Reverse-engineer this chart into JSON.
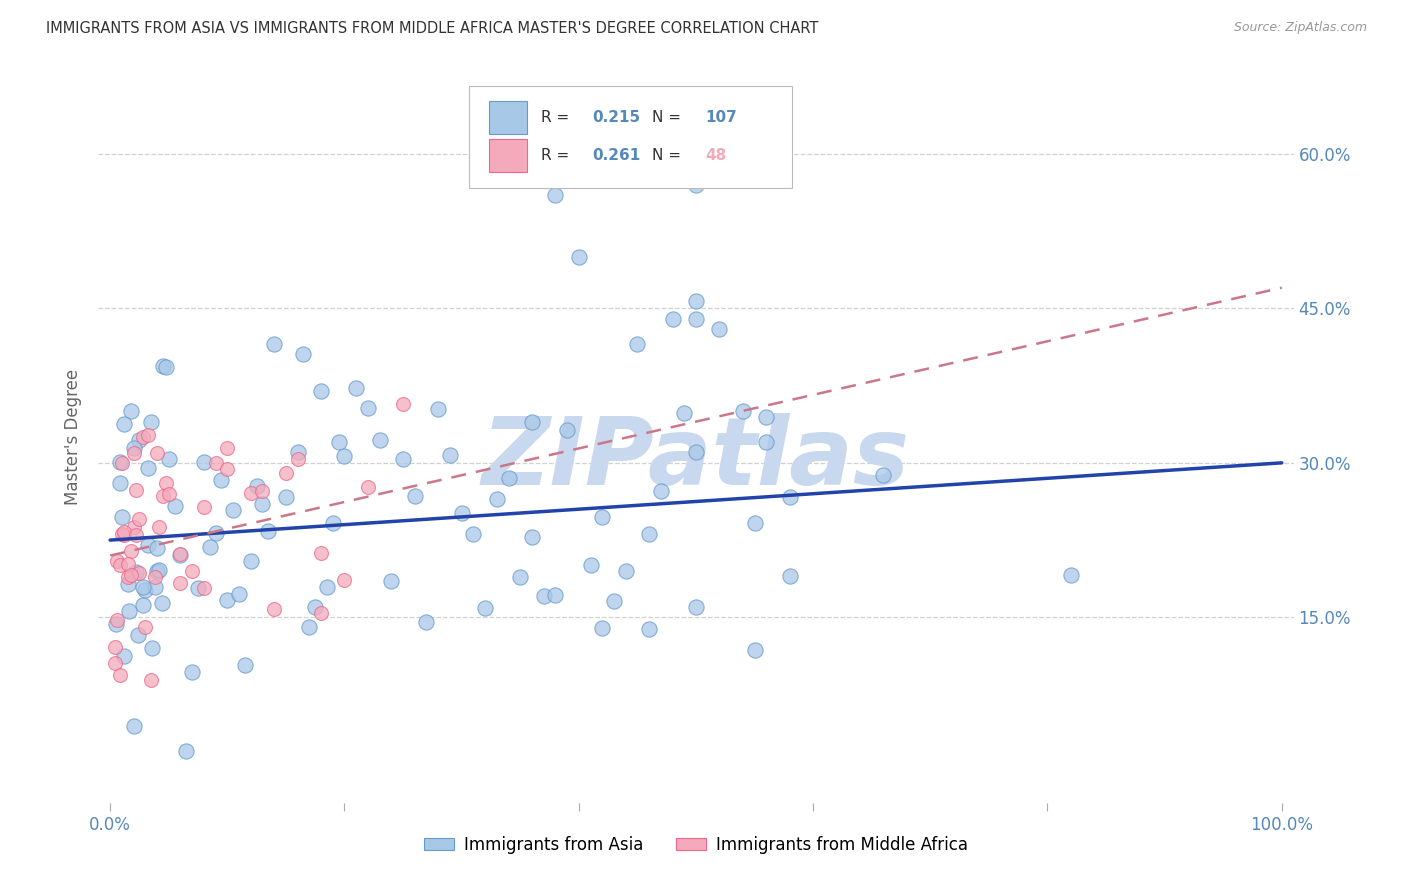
{
  "title": "IMMIGRANTS FROM ASIA VS IMMIGRANTS FROM MIDDLE AFRICA MASTER'S DEGREE CORRELATION CHART",
  "source": "Source: ZipAtlas.com",
  "ylabel": "Master's Degree",
  "watermark": "ZIPatlas",
  "xlim": [
    -0.01,
    1.01
  ],
  "ylim": [
    -0.03,
    0.68
  ],
  "ytick_positions": [
    0.15,
    0.3,
    0.45,
    0.6
  ],
  "ytick_labels": [
    "15.0%",
    "30.0%",
    "45.0%",
    "60.0%"
  ],
  "legend_R_asia": "0.215",
  "legend_N_asia": "107",
  "legend_R_africa": "0.261",
  "legend_N_africa": "48",
  "asia_color": "#A8C8E8",
  "asia_edge_color": "#6699CC",
  "africa_color": "#F4AABB",
  "africa_edge_color": "#EE6688",
  "trend_asia_color": "#2244AA",
  "trend_africa_color": "#CC7788",
  "grid_color": "#CCCCCC",
  "background_color": "#FFFFFF",
  "title_color": "#333333",
  "axis_label_color": "#5588BB",
  "watermark_color": "#C8D8EE",
  "trend_asia": [
    0.0,
    0.225,
    1.0,
    0.3
  ],
  "trend_africa": [
    0.0,
    0.21,
    1.0,
    0.47
  ]
}
